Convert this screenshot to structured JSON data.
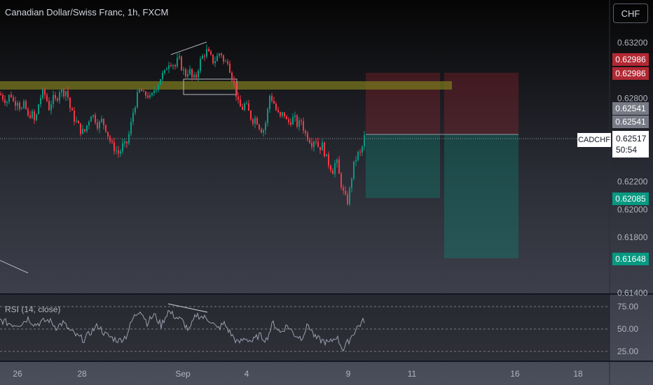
{
  "header": {
    "title": "Canadian Dollar/Swiss Franc, 1h, FXCM",
    "currency_button": "CHF"
  },
  "price_axis": {
    "ticks": [
      "0.63200",
      "0.62800",
      "0.62200",
      "0.62000",
      "0.61800",
      "0.61400"
    ]
  },
  "price_tags": [
    {
      "name": "stop-loss-tag-1",
      "value": "0.62986",
      "color": "#b22833"
    },
    {
      "name": "stop-loss-tag-2",
      "value": "0.62986",
      "color": "#b22833"
    },
    {
      "name": "entry-tag-1",
      "value": "0.62541",
      "color": "#787b86"
    },
    {
      "name": "entry-tag-2",
      "value": "0.62541",
      "color": "#787b86"
    },
    {
      "name": "target-tag-1",
      "value": "0.62085",
      "color": "#089981"
    },
    {
      "name": "target-tag-2",
      "value": "0.61648",
      "color": "#089981"
    }
  ],
  "current_price": {
    "symbol": "CADCHF",
    "price": "0.62517",
    "countdown": "50:54"
  },
  "rsi": {
    "label": "RSI (14, close)",
    "ticks": [
      "75.00",
      "50.00",
      "25.00"
    ]
  },
  "time_axis": {
    "labels": [
      "26",
      "28",
      "Sep",
      "4",
      "9",
      "11",
      "16",
      "18"
    ]
  },
  "colors": {
    "bull": "#089981",
    "bear": "#f23645",
    "resistance_zone": "#6b6a1e",
    "rsi_line": "#9c9fb0"
  },
  "chart_data": {
    "type": "candlestick",
    "title": "Canadian Dollar/Swiss Franc, 1h, FXCM",
    "ylim": [
      0.614,
      0.633
    ],
    "close_path": [
      [
        0,
        0.6283
      ],
      [
        5,
        0.628
      ],
      [
        10,
        0.6278
      ],
      [
        15,
        0.6284
      ],
      [
        20,
        0.6276
      ],
      [
        25,
        0.6279
      ],
      [
        30,
        0.6271
      ],
      [
        35,
        0.6276
      ],
      [
        40,
        0.6266
      ],
      [
        45,
        0.627
      ],
      [
        50,
        0.6262
      ],
      [
        55,
        0.6276
      ],
      [
        60,
        0.6284
      ],
      [
        65,
        0.6282
      ],
      [
        70,
        0.6273
      ],
      [
        75,
        0.628
      ],
      [
        80,
        0.6278
      ],
      [
        85,
        0.6286
      ],
      [
        90,
        0.6284
      ],
      [
        95,
        0.6286
      ],
      [
        100,
        0.6273
      ],
      [
        105,
        0.6266
      ],
      [
        110,
        0.6262
      ],
      [
        115,
        0.6257
      ],
      [
        120,
        0.6255
      ],
      [
        125,
        0.6262
      ],
      [
        130,
        0.6269
      ],
      [
        135,
        0.6266
      ],
      [
        140,
        0.626
      ],
      [
        145,
        0.6264
      ],
      [
        150,
        0.626
      ],
      [
        155,
        0.6252
      ],
      [
        160,
        0.6246
      ],
      [
        165,
        0.6243
      ],
      [
        170,
        0.624
      ],
      [
        175,
        0.6246
      ],
      [
        180,
        0.6246
      ],
      [
        185,
        0.6256
      ],
      [
        190,
        0.627
      ],
      [
        195,
        0.628
      ],
      [
        200,
        0.6287
      ],
      [
        205,
        0.6282
      ],
      [
        210,
        0.6283
      ],
      [
        215,
        0.6279
      ],
      [
        220,
        0.6286
      ],
      [
        225,
        0.629
      ],
      [
        230,
        0.6296
      ],
      [
        235,
        0.6298
      ],
      [
        240,
        0.6306
      ],
      [
        245,
        0.6306
      ],
      [
        250,
        0.6303
      ],
      [
        255,
        0.6309
      ],
      [
        260,
        0.6301
      ],
      [
        265,
        0.6297
      ],
      [
        270,
        0.6301
      ],
      [
        275,
        0.6293
      ],
      [
        280,
        0.6296
      ],
      [
        285,
        0.6306
      ],
      [
        290,
        0.6311
      ],
      [
        295,
        0.6314
      ],
      [
        300,
        0.631
      ],
      [
        305,
        0.6306
      ],
      [
        310,
        0.631
      ],
      [
        315,
        0.6314
      ],
      [
        320,
        0.6304
      ],
      [
        325,
        0.6308
      ],
      [
        330,
        0.6297
      ],
      [
        335,
        0.6288
      ],
      [
        340,
        0.6276
      ],
      [
        345,
        0.6272
      ],
      [
        350,
        0.6276
      ],
      [
        355,
        0.627
      ],
      [
        360,
        0.6264
      ],
      [
        365,
        0.6266
      ],
      [
        370,
        0.626
      ],
      [
        375,
        0.6256
      ],
      [
        380,
        0.6264
      ],
      [
        385,
        0.6282
      ],
      [
        390,
        0.6278
      ],
      [
        395,
        0.627
      ],
      [
        400,
        0.6266
      ],
      [
        405,
        0.627
      ],
      [
        410,
        0.6262
      ],
      [
        415,
        0.6264
      ],
      [
        420,
        0.6266
      ],
      [
        425,
        0.626
      ],
      [
        430,
        0.6264
      ],
      [
        435,
        0.6255
      ],
      [
        440,
        0.6252
      ],
      [
        445,
        0.6248
      ],
      [
        450,
        0.6252
      ],
      [
        455,
        0.6244
      ],
      [
        460,
        0.6246
      ],
      [
        465,
        0.6238
      ],
      [
        470,
        0.6232
      ],
      [
        475,
        0.6228
      ],
      [
        480,
        0.6236
      ],
      [
        485,
        0.6222
      ],
      [
        490,
        0.6212
      ],
      [
        493,
        0.6208
      ],
      [
        497,
        0.6205
      ],
      [
        500,
        0.6218
      ],
      [
        505,
        0.6232
      ],
      [
        510,
        0.624
      ],
      [
        515,
        0.624
      ],
      [
        520,
        0.6252
      ]
    ],
    "annotations": {
      "resistance_zone": [
        0.6283,
        0.6287
      ],
      "short_position_1": {
        "entry": 0.62541,
        "stop": 0.62986,
        "target": 0.62085
      },
      "short_position_2": {
        "entry": 0.62541,
        "stop": 0.62986,
        "target": 0.61648
      }
    },
    "rsi_path": [
      [
        0,
        60
      ],
      [
        10,
        57
      ],
      [
        20,
        55
      ],
      [
        30,
        56
      ],
      [
        40,
        62
      ],
      [
        50,
        55
      ],
      [
        60,
        58
      ],
      [
        70,
        60
      ],
      [
        80,
        52
      ],
      [
        90,
        57
      ],
      [
        100,
        48
      ],
      [
        110,
        42
      ],
      [
        120,
        38
      ],
      [
        130,
        47
      ],
      [
        140,
        54
      ],
      [
        150,
        44
      ],
      [
        160,
        40
      ],
      [
        170,
        37
      ],
      [
        180,
        42
      ],
      [
        190,
        62
      ],
      [
        200,
        72
      ],
      [
        210,
        57
      ],
      [
        220,
        66
      ],
      [
        230,
        54
      ],
      [
        240,
        70
      ],
      [
        250,
        64
      ],
      [
        260,
        59
      ],
      [
        270,
        48
      ],
      [
        280,
        66
      ],
      [
        290,
        63
      ],
      [
        300,
        60
      ],
      [
        310,
        50
      ],
      [
        320,
        56
      ],
      [
        330,
        44
      ],
      [
        340,
        34
      ],
      [
        350,
        40
      ],
      [
        360,
        36
      ],
      [
        370,
        43
      ],
      [
        380,
        38
      ],
      [
        390,
        57
      ],
      [
        400,
        46
      ],
      [
        410,
        54
      ],
      [
        420,
        44
      ],
      [
        430,
        40
      ],
      [
        440,
        55
      ],
      [
        450,
        40
      ],
      [
        460,
        37
      ],
      [
        470,
        34
      ],
      [
        480,
        42
      ],
      [
        490,
        27
      ],
      [
        500,
        40
      ],
      [
        510,
        52
      ],
      [
        520,
        60
      ]
    ]
  }
}
